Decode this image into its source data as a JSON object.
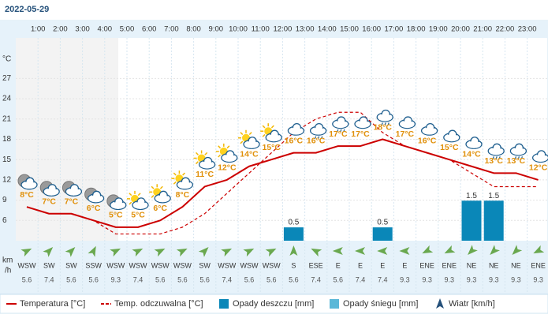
{
  "chart_data": {
    "type": "line",
    "title": "2022-05-29",
    "y_axis_label": "°C",
    "wind_axis_label": [
      "km",
      "/h"
    ],
    "categories": [
      null,
      "1:00",
      "2:00",
      "3:00",
      "4:00",
      "5:00",
      "6:00",
      "7:00",
      "8:00",
      "9:00",
      "10:00",
      "11:00",
      "12:00",
      "13:00",
      "14:00",
      "15:00",
      "16:00",
      "17:00",
      "18:00",
      "19:00",
      "20:00",
      "21:00",
      "22:00",
      "23:00"
    ],
    "ylim": [
      3,
      33
    ],
    "yticks": [
      6,
      9,
      12,
      15,
      18,
      21,
      24,
      27
    ],
    "y2lim": [
      0,
      7.6
    ],
    "series": [
      {
        "name": "Temperatura [°C]",
        "color": "#cc0000",
        "values": [
          8,
          7,
          7,
          6,
          5,
          5,
          6,
          8,
          11,
          12,
          14,
          15,
          16,
          16,
          17,
          17,
          18,
          17,
          16,
          15,
          14,
          13,
          13,
          12
        ],
        "value_labels": [
          "8°C",
          "7°C",
          "7°C",
          "6°C",
          "5°C",
          "5°C",
          "6°C",
          "8°C",
          "11°C",
          "12°C",
          "14°C",
          "15°C",
          "16°C",
          "16°C",
          "17°C",
          "17°C",
          "18°C",
          "17°C",
          "16°C",
          "15°C",
          "14°C",
          "13°C",
          "13°C",
          "12°C"
        ]
      },
      {
        "name": "Temp. odczuwalna [°C]",
        "color": "#cc0000",
        "dashed": true,
        "values": [
          8,
          7,
          7,
          6,
          4,
          4,
          4,
          5,
          7,
          10,
          13,
          16,
          19,
          21,
          22,
          22,
          19,
          17,
          16,
          15,
          13,
          11,
          11,
          11
        ]
      },
      {
        "name": "Opady deszczu [mm]",
        "color": "#0a87b8",
        "axis": "y2",
        "values": [
          0,
          0,
          0,
          0,
          0,
          0,
          0,
          0,
          0,
          0,
          0,
          0,
          0.5,
          0,
          0,
          0,
          0.5,
          0,
          0,
          0,
          1.5,
          1.5,
          0,
          0
        ]
      },
      {
        "name": "Opady śniegu [mm]",
        "color": "#5ab8d8",
        "axis": "y2",
        "values": [
          0,
          0,
          0,
          0,
          0,
          0,
          0,
          0,
          0,
          0,
          0,
          0,
          0,
          0,
          0,
          0,
          0,
          0,
          0,
          0,
          0,
          0,
          0,
          0
        ]
      },
      {
        "name": "Wiatr [km/h]",
        "color": "#6aa84f",
        "directions": [
          "WSW",
          "SW",
          "SW",
          "SSW",
          "WSW",
          "WSW",
          "WSW",
          "WSW",
          "SW",
          "WSW",
          "WSW",
          "WSW",
          "S",
          "ESE",
          "E",
          "E",
          "E",
          "E",
          "ENE",
          "ENE",
          "NE",
          "NE",
          "NE",
          "ENE"
        ],
        "values": [
          5.6,
          7.4,
          5.6,
          5.6,
          9.3,
          7.4,
          5.6,
          5.6,
          5.6,
          7.4,
          5.6,
          5.6,
          5.6,
          7.4,
          5.6,
          7.4,
          7.4,
          9.3,
          9.3,
          9.3,
          9.3,
          9.3,
          9.3,
          9.3
        ]
      }
    ]
  }
}
